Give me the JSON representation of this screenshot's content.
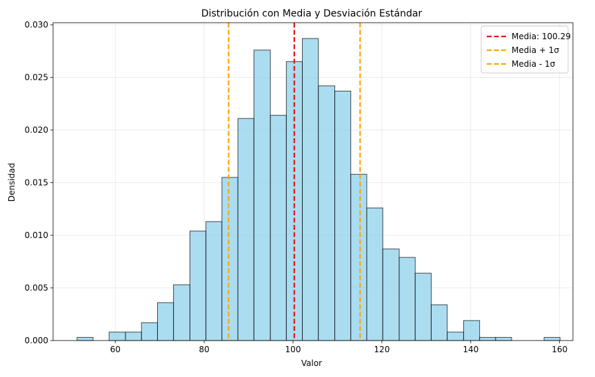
{
  "chart_data": {
    "type": "bar",
    "subtype": "histogram",
    "title": "Distribución con Media y Desviación Estándar",
    "xlabel": "Valor",
    "ylabel": "Densidad",
    "xlim": [
      46,
      163
    ],
    "ylim": [
      0,
      0.0302
    ],
    "xticks": [
      60,
      80,
      100,
      120,
      140,
      160
    ],
    "yticks": [
      0.0,
      0.005,
      0.01,
      0.015,
      0.02,
      0.025,
      0.03
    ],
    "ytick_labels": [
      "0.000",
      "0.005",
      "0.010",
      "0.015",
      "0.020",
      "0.025",
      "0.030"
    ],
    "grid": true,
    "bar_color": "#87CEEB",
    "bar_edge_color": "#000000",
    "bins": [
      {
        "x0": 51.4,
        "x1": 55.0,
        "density": 0.0003
      },
      {
        "x0": 55.0,
        "x1": 58.6,
        "density": 0.0
      },
      {
        "x0": 58.6,
        "x1": 62.3,
        "density": 0.0008
      },
      {
        "x0": 62.3,
        "x1": 65.9,
        "density": 0.0008
      },
      {
        "x0": 65.9,
        "x1": 69.5,
        "density": 0.0017
      },
      {
        "x0": 69.5,
        "x1": 73.1,
        "density": 0.0036
      },
      {
        "x0": 73.1,
        "x1": 76.8,
        "density": 0.0053
      },
      {
        "x0": 76.8,
        "x1": 80.4,
        "density": 0.0104
      },
      {
        "x0": 80.4,
        "x1": 84.0,
        "density": 0.0113
      },
      {
        "x0": 84.0,
        "x1": 87.6,
        "density": 0.0155
      },
      {
        "x0": 87.6,
        "x1": 91.2,
        "density": 0.0211
      },
      {
        "x0": 91.2,
        "x1": 94.9,
        "density": 0.0276
      },
      {
        "x0": 94.9,
        "x1": 98.5,
        "density": 0.0214
      },
      {
        "x0": 98.5,
        "x1": 102.1,
        "density": 0.0265
      },
      {
        "x0": 102.1,
        "x1": 105.7,
        "density": 0.0287
      },
      {
        "x0": 105.7,
        "x1": 109.4,
        "density": 0.0242
      },
      {
        "x0": 109.4,
        "x1": 113.0,
        "density": 0.0237
      },
      {
        "x0": 113.0,
        "x1": 116.6,
        "density": 0.0158
      },
      {
        "x0": 116.6,
        "x1": 120.2,
        "density": 0.0126
      },
      {
        "x0": 120.2,
        "x1": 123.9,
        "density": 0.0087
      },
      {
        "x0": 123.9,
        "x1": 127.5,
        "density": 0.0079
      },
      {
        "x0": 127.5,
        "x1": 131.1,
        "density": 0.0064
      },
      {
        "x0": 131.1,
        "x1": 134.7,
        "density": 0.0034
      },
      {
        "x0": 134.7,
        "x1": 138.4,
        "density": 0.0008
      },
      {
        "x0": 138.4,
        "x1": 142.0,
        "density": 0.0019
      },
      {
        "x0": 142.0,
        "x1": 145.6,
        "density": 0.0003
      },
      {
        "x0": 145.6,
        "x1": 149.2,
        "density": 0.0003
      },
      {
        "x0": 149.2,
        "x1": 152.9,
        "density": 0.0
      },
      {
        "x0": 152.9,
        "x1": 156.5,
        "density": 0.0
      },
      {
        "x0": 156.5,
        "x1": 160.1,
        "density": 0.0003
      }
    ],
    "lines": [
      {
        "name": "Media: 100.29",
        "x": 100.29,
        "color": "#e31a1c",
        "style": "dashed"
      },
      {
        "name": "Media + 1σ",
        "x": 115.1,
        "color": "#FFA500",
        "style": "dashed"
      },
      {
        "name": "Media - 1σ",
        "x": 85.5,
        "color": "#FFA500",
        "style": "dashed"
      }
    ],
    "legend_position": "top-right"
  }
}
